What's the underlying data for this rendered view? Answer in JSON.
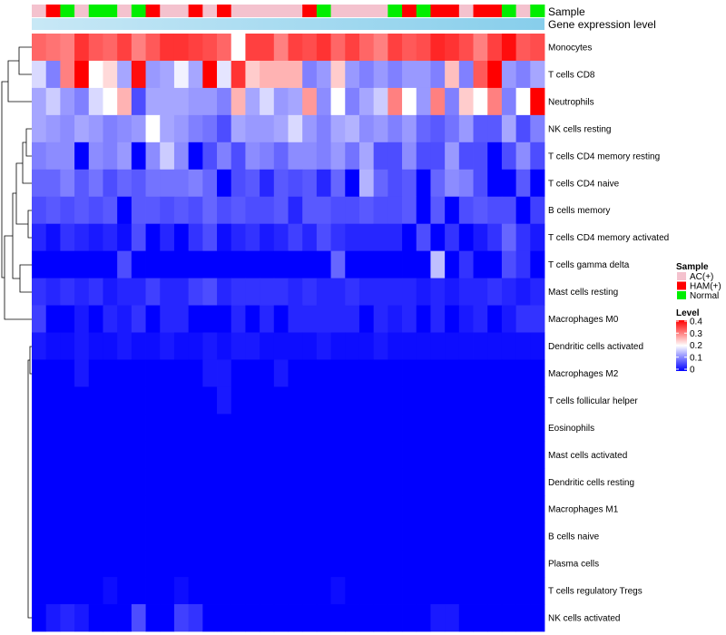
{
  "chart_data": {
    "type": "heatmap",
    "annotation_labels": {
      "sample": "Sample",
      "level": "Gene expression level"
    },
    "sample_groups": [
      "AC(+)",
      "HAM(+)",
      "Normal",
      "AC(+)",
      "Normal",
      "Normal",
      "AC(+)",
      "Normal",
      "HAM(+)",
      "AC(+)",
      "AC(+)",
      "HAM(+)",
      "AC(+)",
      "HAM(+)",
      "AC(+)",
      "AC(+)",
      "AC(+)",
      "AC(+)",
      "AC(+)",
      "HAM(+)",
      "Normal",
      "AC(+)",
      "AC(+)",
      "AC(+)",
      "AC(+)",
      "Normal",
      "HAM(+)",
      "Normal",
      "HAM(+)",
      "HAM(+)",
      "AC(+)",
      "HAM(+)",
      "HAM(+)",
      "Normal",
      "AC(+)",
      "Normal"
    ],
    "rows": [
      {
        "label": "Monocytes",
        "values": [
          0.32,
          0.31,
          0.3,
          0.36,
          0.33,
          0.32,
          0.35,
          0.3,
          0.33,
          0.36,
          0.36,
          0.35,
          0.34,
          0.32,
          0.2,
          0.35,
          0.35,
          0.3,
          0.35,
          0.34,
          0.36,
          0.32,
          0.35,
          0.32,
          0.3,
          0.35,
          0.33,
          0.34,
          0.37,
          0.36,
          0.34,
          0.3,
          0.35,
          0.39,
          0.33,
          0.34
        ]
      },
      {
        "label": "T cells CD8",
        "values": [
          0.17,
          0.1,
          0.3,
          0.4,
          0.2,
          0.23,
          0.13,
          0.39,
          0.12,
          0.13,
          0.19,
          0.13,
          0.4,
          0.18,
          0.36,
          0.24,
          0.26,
          0.26,
          0.26,
          0.1,
          0.12,
          0.24,
          0.12,
          0.1,
          0.12,
          0.1,
          0.12,
          0.12,
          0.1,
          0.25,
          0.1,
          0.33,
          0.4,
          0.12,
          0.1,
          0.13
        ]
      },
      {
        "label": "Neutrophils",
        "values": [
          0.13,
          0.16,
          0.12,
          0.1,
          0.17,
          0.2,
          0.26,
          0.06,
          0.13,
          0.13,
          0.13,
          0.12,
          0.12,
          0.1,
          0.26,
          0.13,
          0.17,
          0.12,
          0.13,
          0.28,
          0.11,
          0.2,
          0.1,
          0.13,
          0.16,
          0.3,
          0.2,
          0.12,
          0.3,
          0.1,
          0.24,
          0.2,
          0.3,
          0.1,
          0.2,
          0.4
        ]
      },
      {
        "label": "NK cells resting",
        "values": [
          0.13,
          0.12,
          0.11,
          0.13,
          0.12,
          0.1,
          0.11,
          0.12,
          0.2,
          0.13,
          0.12,
          0.1,
          0.09,
          0.06,
          0.13,
          0.12,
          0.12,
          0.13,
          0.17,
          0.12,
          0.1,
          0.13,
          0.14,
          0.11,
          0.12,
          0.1,
          0.12,
          0.08,
          0.07,
          0.09,
          0.12,
          0.07,
          0.07,
          0.13,
          0.06,
          0.1
        ]
      },
      {
        "label": "T cells CD4 memory resting",
        "values": [
          0.1,
          0.11,
          0.11,
          0.0,
          0.11,
          0.1,
          0.12,
          0.0,
          0.11,
          0.16,
          0.11,
          0.0,
          0.06,
          0.1,
          0.06,
          0.11,
          0.1,
          0.08,
          0.11,
          0.11,
          0.1,
          0.12,
          0.09,
          0.13,
          0.06,
          0.06,
          0.11,
          0.06,
          0.06,
          0.12,
          0.06,
          0.06,
          0.0,
          0.06,
          0.11,
          0.06
        ]
      },
      {
        "label": "T cells CD4 naive",
        "values": [
          0.08,
          0.08,
          0.1,
          0.07,
          0.09,
          0.06,
          0.08,
          0.07,
          0.09,
          0.09,
          0.09,
          0.1,
          0.08,
          0.0,
          0.06,
          0.07,
          0.03,
          0.07,
          0.06,
          0.07,
          0.03,
          0.08,
          0.0,
          0.14,
          0.08,
          0.06,
          0.07,
          0.0,
          0.08,
          0.11,
          0.1,
          0.06,
          0.0,
          0.0,
          0.07,
          0.0
        ]
      },
      {
        "label": "B cells memory",
        "values": [
          0.06,
          0.07,
          0.06,
          0.07,
          0.06,
          0.07,
          0.0,
          0.07,
          0.07,
          0.06,
          0.07,
          0.06,
          0.08,
          0.06,
          0.07,
          0.06,
          0.06,
          0.07,
          0.03,
          0.07,
          0.07,
          0.06,
          0.06,
          0.07,
          0.06,
          0.06,
          0.07,
          0.0,
          0.07,
          0.0,
          0.06,
          0.07,
          0.06,
          0.06,
          0.0,
          0.05
        ]
      },
      {
        "label": "T cells CD4 memory activated",
        "values": [
          0.03,
          0.01,
          0.04,
          0.03,
          0.02,
          0.03,
          0.01,
          0.06,
          0.0,
          0.03,
          0.0,
          0.04,
          0.06,
          0.01,
          0.03,
          0.04,
          0.02,
          0.03,
          0.05,
          0.03,
          0.06,
          0.04,
          0.03,
          0.03,
          0.03,
          0.03,
          0.0,
          0.06,
          0.0,
          0.04,
          0.0,
          0.02,
          0.04,
          0.08,
          0.04,
          0.02
        ]
      },
      {
        "label": "T cells gamma delta",
        "values": [
          0.0,
          0.0,
          0.0,
          0.0,
          0.0,
          0.0,
          0.06,
          0.0,
          0.0,
          0.0,
          0.0,
          0.0,
          0.0,
          0.0,
          0.0,
          0.0,
          0.0,
          0.0,
          0.0,
          0.0,
          0.0,
          0.08,
          0.0,
          0.0,
          0.0,
          0.0,
          0.0,
          0.0,
          0.15,
          0.0,
          0.04,
          0.0,
          0.0,
          0.06,
          0.04,
          0.0
        ]
      },
      {
        "label": "Mast cells resting",
        "values": [
          0.04,
          0.03,
          0.04,
          0.03,
          0.04,
          0.02,
          0.03,
          0.03,
          0.05,
          0.03,
          0.03,
          0.05,
          0.06,
          0.03,
          0.04,
          0.04,
          0.04,
          0.04,
          0.03,
          0.04,
          0.03,
          0.03,
          0.04,
          0.03,
          0.03,
          0.03,
          0.03,
          0.02,
          0.03,
          0.02,
          0.03,
          0.03,
          0.04,
          0.03,
          0.02,
          0.03
        ]
      },
      {
        "label": "Macrophages M0",
        "values": [
          0.05,
          0.0,
          0.0,
          0.02,
          0.0,
          0.03,
          0.02,
          0.04,
          0.0,
          0.03,
          0.03,
          0.0,
          0.0,
          0.0,
          0.03,
          0.0,
          0.03,
          0.0,
          0.03,
          0.03,
          0.03,
          0.03,
          0.03,
          0.0,
          0.03,
          0.02,
          0.03,
          0.0,
          0.03,
          0.0,
          0.02,
          0.03,
          0.0,
          0.02,
          0.04,
          0.04
        ]
      },
      {
        "label": "Dendritic cells activated",
        "values": [
          0.02,
          0.01,
          0.01,
          0.02,
          0.01,
          0.01,
          0.02,
          0.01,
          0.01,
          0.02,
          0.01,
          0.01,
          0.02,
          0.01,
          0.02,
          0.02,
          0.01,
          0.01,
          0.01,
          0.01,
          0.02,
          0.01,
          0.01,
          0.01,
          0.02,
          0.01,
          0.01,
          0.01,
          0.01,
          0.01,
          0.01,
          0.01,
          0.01,
          0.01,
          0.01,
          0.01
        ]
      },
      {
        "label": "Macrophages M2",
        "values": [
          0.0,
          0.0,
          0.0,
          0.02,
          0.0,
          0.0,
          0.0,
          0.0,
          0.0,
          0.0,
          0.0,
          0.0,
          0.02,
          0.02,
          0.0,
          0.0,
          0.0,
          0.02,
          0.0,
          0.0,
          0.0,
          0.0,
          0.0,
          0.0,
          0.0,
          0.0,
          0.0,
          0.0,
          0.0,
          0.0,
          0.0,
          0.0,
          0.0,
          0.0,
          0.0,
          0.0
        ]
      },
      {
        "label": "T cells follicular helper",
        "values": [
          0.0,
          0.0,
          0.0,
          0.0,
          0.0,
          0.0,
          0.0,
          0.0,
          0.0,
          0.0,
          0.0,
          0.0,
          0.0,
          0.02,
          0.0,
          0.0,
          0.0,
          0.0,
          0.0,
          0.0,
          0.0,
          0.0,
          0.0,
          0.0,
          0.0,
          0.0,
          0.0,
          0.0,
          0.0,
          0.0,
          0.0,
          0.0,
          0.0,
          0.0,
          0.0,
          0.0
        ]
      },
      {
        "label": "Eosinophils",
        "values": [
          0.0,
          0.0,
          0.0,
          0.0,
          0.0,
          0.0,
          0.0,
          0.0,
          0.0,
          0.0,
          0.0,
          0.0,
          0.0,
          0.0,
          0.0,
          0.0,
          0.0,
          0.0,
          0.0,
          0.0,
          0.0,
          0.0,
          0.0,
          0.0,
          0.0,
          0.0,
          0.0,
          0.0,
          0.0,
          0.0,
          0.0,
          0.0,
          0.0,
          0.0,
          0.0,
          0.0
        ]
      },
      {
        "label": "Mast cells activated",
        "values": [
          0.0,
          0.0,
          0.0,
          0.0,
          0.0,
          0.0,
          0.0,
          0.0,
          0.0,
          0.0,
          0.0,
          0.0,
          0.0,
          0.0,
          0.0,
          0.0,
          0.0,
          0.0,
          0.0,
          0.0,
          0.0,
          0.0,
          0.0,
          0.0,
          0.0,
          0.0,
          0.0,
          0.0,
          0.0,
          0.0,
          0.0,
          0.0,
          0.0,
          0.0,
          0.0,
          0.0
        ]
      },
      {
        "label": "Dendritic cells resting",
        "values": [
          0.0,
          0.0,
          0.0,
          0.0,
          0.0,
          0.0,
          0.0,
          0.0,
          0.0,
          0.0,
          0.0,
          0.0,
          0.0,
          0.0,
          0.0,
          0.0,
          0.0,
          0.0,
          0.0,
          0.0,
          0.0,
          0.0,
          0.0,
          0.0,
          0.0,
          0.0,
          0.0,
          0.0,
          0.0,
          0.0,
          0.0,
          0.0,
          0.0,
          0.0,
          0.0,
          0.0
        ]
      },
      {
        "label": "Macrophages M1",
        "values": [
          0.0,
          0.0,
          0.0,
          0.0,
          0.0,
          0.0,
          0.0,
          0.0,
          0.0,
          0.0,
          0.0,
          0.0,
          0.0,
          0.0,
          0.0,
          0.0,
          0.0,
          0.0,
          0.0,
          0.0,
          0.0,
          0.0,
          0.0,
          0.0,
          0.0,
          0.0,
          0.0,
          0.0,
          0.0,
          0.0,
          0.0,
          0.0,
          0.0,
          0.0,
          0.0,
          0.0
        ]
      },
      {
        "label": "B cells naive",
        "values": [
          0.0,
          0.0,
          0.0,
          0.0,
          0.0,
          0.0,
          0.0,
          0.0,
          0.0,
          0.0,
          0.0,
          0.0,
          0.0,
          0.0,
          0.0,
          0.0,
          0.0,
          0.0,
          0.0,
          0.0,
          0.0,
          0.0,
          0.0,
          0.0,
          0.0,
          0.0,
          0.0,
          0.0,
          0.0,
          0.0,
          0.0,
          0.0,
          0.0,
          0.0,
          0.0,
          0.0
        ]
      },
      {
        "label": "Plasma cells",
        "values": [
          0.0,
          0.0,
          0.0,
          0.0,
          0.0,
          0.0,
          0.0,
          0.0,
          0.0,
          0.0,
          0.0,
          0.0,
          0.0,
          0.0,
          0.0,
          0.0,
          0.0,
          0.0,
          0.0,
          0.0,
          0.0,
          0.0,
          0.0,
          0.0,
          0.0,
          0.0,
          0.0,
          0.0,
          0.0,
          0.0,
          0.0,
          0.0,
          0.0,
          0.0,
          0.0,
          0.0
        ]
      },
      {
        "label": "T cells regulatory  Tregs",
        "values": [
          0.0,
          0.0,
          0.0,
          0.0,
          0.0,
          0.01,
          0.0,
          0.0,
          0.0,
          0.0,
          0.01,
          0.0,
          0.0,
          0.0,
          0.0,
          0.0,
          0.0,
          0.0,
          0.0,
          0.0,
          0.0,
          0.01,
          0.0,
          0.0,
          0.0,
          0.0,
          0.0,
          0.0,
          0.0,
          0.0,
          0.0,
          0.0,
          0.0,
          0.0,
          0.0,
          0.0
        ]
      },
      {
        "label": "NK cells activated",
        "values": [
          0.0,
          0.02,
          0.03,
          0.02,
          0.0,
          0.0,
          0.0,
          0.06,
          0.0,
          0.0,
          0.05,
          0.04,
          0.0,
          0.0,
          0.0,
          0.0,
          0.0,
          0.0,
          0.0,
          0.0,
          0.0,
          0.0,
          0.0,
          0.0,
          0.0,
          0.0,
          0.0,
          0.0,
          0.02,
          0.02,
          0.0,
          0.0,
          0.0,
          0.0,
          0.0,
          0.0
        ]
      }
    ],
    "group_colors": {
      "AC(+)": "#f4c2ce",
      "HAM(+)": "#ff0000",
      "Normal": "#00ee00"
    },
    "level_annotation_color": "#87ceeb",
    "level_annotation_light": "#c8e8f6",
    "color_scale": {
      "min": 0,
      "max": 0.4,
      "low": "#0000ff",
      "mid": "#ffffff",
      "high": "#ff0000"
    },
    "legend": {
      "sample_title": "Sample",
      "sample_entries": [
        "AC(+)",
        "HAM(+)",
        "Normal"
      ],
      "level_title": "Level",
      "level_ticks": [
        "0.4",
        "0.3",
        "0.2",
        "0.1",
        "0"
      ]
    }
  }
}
